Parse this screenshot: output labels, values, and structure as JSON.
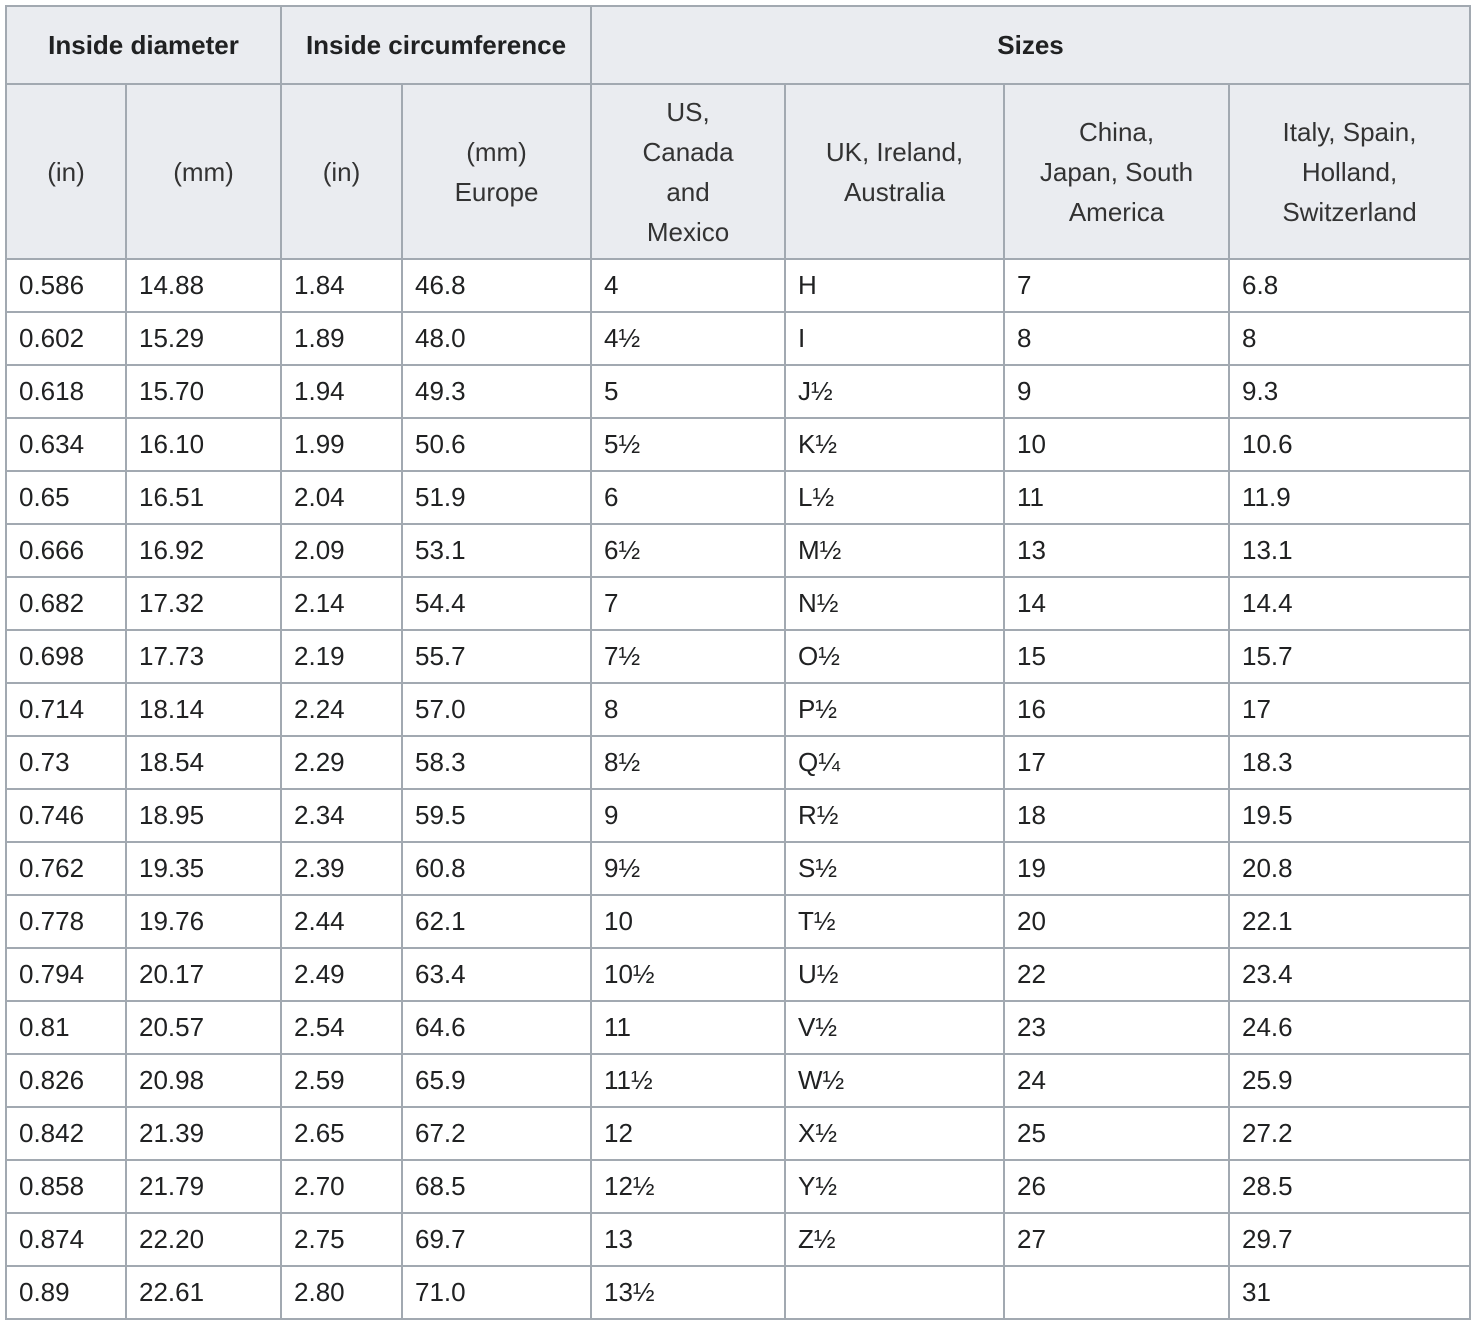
{
  "table": {
    "group_headers": [
      "Inside diameter",
      "Inside circumference",
      "Sizes"
    ],
    "sub_headers": [
      "(in)",
      "(mm)",
      "(in)",
      "(mm)\nEurope",
      "US,\nCanada\nand\nMexico",
      "UK, Ireland,\nAustralia",
      "China,\nJapan, South\nAmerica",
      "Italy, Spain,\nHolland,\nSwitzerland"
    ],
    "rows": [
      [
        "0.586",
        "14.88",
        "1.84",
        "46.8",
        "4",
        "H",
        "7",
        "6.8"
      ],
      [
        "0.602",
        "15.29",
        "1.89",
        "48.0",
        "4½",
        "I",
        "8",
        "8"
      ],
      [
        "0.618",
        "15.70",
        "1.94",
        "49.3",
        "5",
        "J½",
        "9",
        "9.3"
      ],
      [
        "0.634",
        "16.10",
        "1.99",
        "50.6",
        "5½",
        "K½",
        "10",
        "10.6"
      ],
      [
        "0.65",
        "16.51",
        "2.04",
        "51.9",
        "6",
        "L½",
        "11",
        "11.9"
      ],
      [
        "0.666",
        "16.92",
        "2.09",
        "53.1",
        "6½",
        "M½",
        "13",
        "13.1"
      ],
      [
        "0.682",
        "17.32",
        "2.14",
        "54.4",
        "7",
        "N½",
        "14",
        "14.4"
      ],
      [
        "0.698",
        "17.73",
        "2.19",
        "55.7",
        "7½",
        "O½",
        "15",
        "15.7"
      ],
      [
        "0.714",
        "18.14",
        "2.24",
        "57.0",
        "8",
        "P½",
        "16",
        "17"
      ],
      [
        "0.73",
        "18.54",
        "2.29",
        "58.3",
        "8½",
        "Q¼",
        "17",
        "18.3"
      ],
      [
        "0.746",
        "18.95",
        "2.34",
        "59.5",
        "9",
        "R½",
        "18",
        "19.5"
      ],
      [
        "0.762",
        "19.35",
        "2.39",
        "60.8",
        "9½",
        "S½",
        "19",
        "20.8"
      ],
      [
        "0.778",
        "19.76",
        "2.44",
        "62.1",
        "10",
        "T½",
        "20",
        "22.1"
      ],
      [
        "0.794",
        "20.17",
        "2.49",
        "63.4",
        "10½",
        "U½",
        "22",
        "23.4"
      ],
      [
        "0.81",
        "20.57",
        "2.54",
        "64.6",
        "11",
        "V½",
        "23",
        "24.6"
      ],
      [
        "0.826",
        "20.98",
        "2.59",
        "65.9",
        "11½",
        "W½",
        "24",
        "25.9"
      ],
      [
        "0.842",
        "21.39",
        "2.65",
        "67.2",
        "12",
        "X½",
        "25",
        "27.2"
      ],
      [
        "0.858",
        "21.79",
        "2.70",
        "68.5",
        "12½",
        "Y½",
        "26",
        "28.5"
      ],
      [
        "0.874",
        "22.20",
        "2.75",
        "69.7",
        "13",
        "Z½",
        "27",
        "29.7"
      ],
      [
        "0.89",
        "22.61",
        "2.80",
        "71.0",
        "13½",
        null,
        null,
        "31"
      ]
    ]
  }
}
